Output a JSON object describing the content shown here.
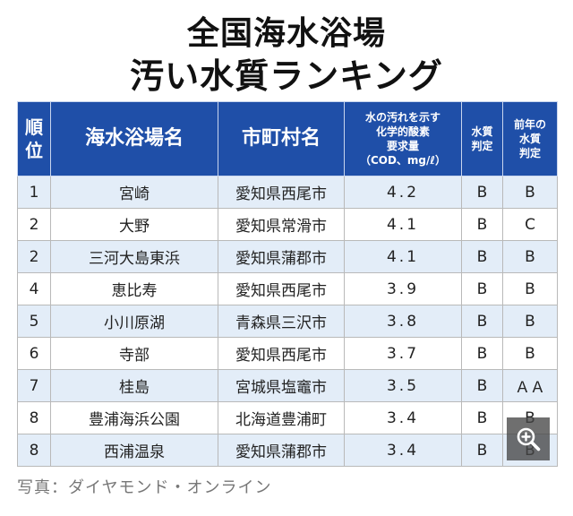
{
  "title": {
    "line1": "全国海水浴場",
    "line2": "汚い水質ランキング"
  },
  "table": {
    "headers": {
      "rank": [
        "順",
        "位"
      ],
      "beach": "海水浴場名",
      "city": "市町村名",
      "cod": [
        "水の汚れを示す",
        "化学的酸素",
        "要求量",
        "（COD、mg/ℓ）"
      ],
      "quality": [
        "水質",
        "判定"
      ],
      "prev": [
        "前年の",
        "水質",
        "判定"
      ]
    },
    "rows": [
      {
        "rank": "1",
        "beach": "宮崎",
        "city": "愛知県西尾市",
        "cod": "4.2",
        "quality": "B",
        "prev": "B"
      },
      {
        "rank": "2",
        "beach": "大野",
        "city": "愛知県常滑市",
        "cod": "4.1",
        "quality": "B",
        "prev": "C"
      },
      {
        "rank": "2",
        "beach": "三河大島東浜",
        "city": "愛知県蒲郡市",
        "cod": "4.1",
        "quality": "B",
        "prev": "B"
      },
      {
        "rank": "4",
        "beach": "恵比寿",
        "city": "愛知県西尾市",
        "cod": "3.9",
        "quality": "B",
        "prev": "B"
      },
      {
        "rank": "5",
        "beach": "小川原湖",
        "city": "青森県三沢市",
        "cod": "3.8",
        "quality": "B",
        "prev": "B"
      },
      {
        "rank": "6",
        "beach": "寺部",
        "city": "愛知県西尾市",
        "cod": "3.7",
        "quality": "B",
        "prev": "B"
      },
      {
        "rank": "7",
        "beach": "桂島",
        "city": "宮城県塩竈市",
        "cod": "3.5",
        "quality": "B",
        "prev": "ＡＡ"
      },
      {
        "rank": "8",
        "beach": "豊浦海浜公園",
        "city": "北海道豊浦町",
        "cod": "3.4",
        "quality": "B",
        "prev": "B"
      },
      {
        "rank": "8",
        "beach": "西浦温泉",
        "city": "愛知県蒲郡市",
        "cod": "3.4",
        "quality": "B",
        "prev": "B"
      }
    ]
  },
  "caption": "写真：ダイヤモンド・オンライン",
  "zoom_icon": "zoom-in-icon",
  "colors": {
    "header_bg": "#1f4fa8",
    "row_alt_bg": "#e3edf8"
  }
}
